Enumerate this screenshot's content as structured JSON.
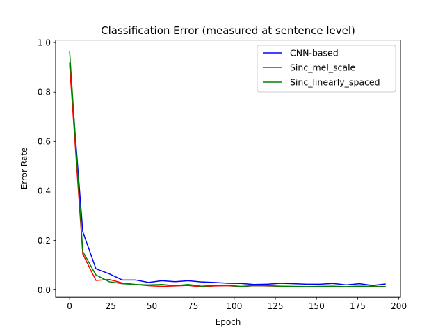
{
  "chart_data": {
    "type": "line",
    "title": "Classification Error (measured at sentence level)",
    "xlabel": "Epoch",
    "ylabel": "Error Rate",
    "xlim": [
      -8.5,
      201
    ],
    "ylim": [
      -0.03,
      1.01
    ],
    "xticks": [
      0,
      25,
      50,
      75,
      100,
      125,
      150,
      175,
      200
    ],
    "yticks": [
      0.0,
      0.2,
      0.4,
      0.6,
      0.8,
      1.0
    ],
    "grid": false,
    "legend_position": "upper-right",
    "x": [
      0,
      8,
      16,
      24,
      32,
      40,
      48,
      56,
      64,
      72,
      80,
      88,
      96,
      104,
      112,
      120,
      128,
      136,
      144,
      152,
      160,
      168,
      176,
      184,
      192
    ],
    "series": [
      {
        "name": "CNN-based",
        "color": "#0000ff",
        "values": [
          0.92,
          0.235,
          0.085,
          0.065,
          0.04,
          0.04,
          0.03,
          0.037,
          0.033,
          0.037,
          0.032,
          0.03,
          0.027,
          0.026,
          0.022,
          0.023,
          0.027,
          0.025,
          0.023,
          0.023,
          0.026,
          0.02,
          0.025,
          0.018,
          0.024
        ]
      },
      {
        "name": "Sinc_mel_scale",
        "color": "#ff0000",
        "values": [
          0.91,
          0.145,
          0.038,
          0.042,
          0.028,
          0.022,
          0.017,
          0.014,
          0.016,
          0.018,
          0.012,
          0.016,
          0.017,
          0.013,
          0.017,
          0.016,
          0.015,
          0.013,
          0.012,
          0.013,
          0.015,
          0.012,
          0.014,
          0.015,
          0.013
        ]
      },
      {
        "name": "Sinc_linearly_spaced",
        "color": "#008000",
        "values": [
          0.965,
          0.155,
          0.06,
          0.033,
          0.025,
          0.022,
          0.02,
          0.022,
          0.017,
          0.022,
          0.015,
          0.018,
          0.018,
          0.014,
          0.017,
          0.017,
          0.015,
          0.014,
          0.013,
          0.014,
          0.014,
          0.013,
          0.015,
          0.013,
          0.013
        ]
      }
    ]
  }
}
